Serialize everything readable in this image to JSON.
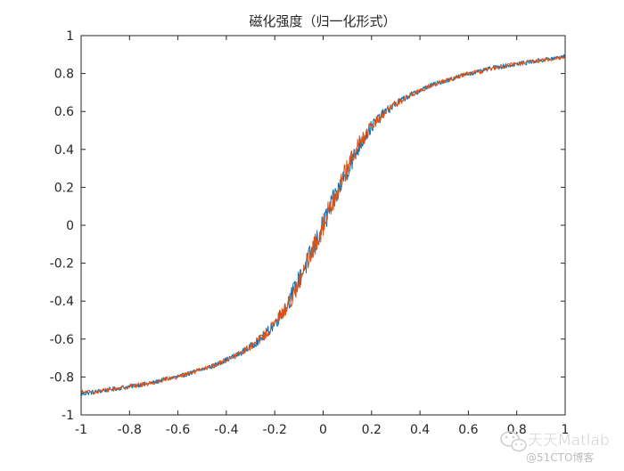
{
  "chart_data": {
    "type": "line",
    "title": "磁化强度（归一化形式）",
    "xlabel": "",
    "ylabel": "",
    "xlim": [
      -1,
      1
    ],
    "ylim": [
      -1,
      1
    ],
    "xticks": [
      -1,
      -0.8,
      -0.6,
      -0.4,
      -0.2,
      0,
      0.2,
      0.4,
      0.6,
      0.8,
      1
    ],
    "xtick_labels": [
      "-1",
      "-0.8",
      "-0.6",
      "-0.4",
      "-0.2",
      "0",
      "0.2",
      "0.4",
      "0.6",
      "0.8",
      "1"
    ],
    "yticks": [
      -1,
      -0.8,
      -0.6,
      -0.4,
      -0.2,
      0,
      0.2,
      0.4,
      0.6,
      0.8,
      1
    ],
    "ytick_labels": [
      "-1",
      "-0.8",
      "-0.6",
      "-0.4",
      "-0.2",
      "0",
      "0.2",
      "0.4",
      "0.6",
      "0.8",
      "1"
    ],
    "grid": false,
    "box": true,
    "legend": "none",
    "series": [
      {
        "color": "#0072BD",
        "x": [
          -1.0,
          -0.95,
          -0.9,
          -0.85,
          -0.8,
          -0.75,
          -0.7,
          -0.65,
          -0.6,
          -0.55,
          -0.5,
          -0.45,
          -0.4,
          -0.35,
          -0.3,
          -0.25,
          -0.2,
          -0.15,
          -0.1,
          -0.05,
          0.0,
          0.05,
          0.1,
          0.15,
          0.2,
          0.25,
          0.3,
          0.35,
          0.4,
          0.45,
          0.5,
          0.55,
          0.6,
          0.65,
          0.7,
          0.75,
          0.8,
          0.85,
          0.9,
          0.95,
          1.0
        ],
        "y": [
          -0.89,
          -0.88,
          -0.87,
          -0.86,
          -0.85,
          -0.84,
          -0.83,
          -0.81,
          -0.8,
          -0.78,
          -0.76,
          -0.74,
          -0.71,
          -0.68,
          -0.64,
          -0.59,
          -0.52,
          -0.42,
          -0.29,
          -0.15,
          0.0,
          0.15,
          0.29,
          0.42,
          0.52,
          0.59,
          0.64,
          0.68,
          0.71,
          0.74,
          0.76,
          0.78,
          0.8,
          0.81,
          0.83,
          0.84,
          0.85,
          0.86,
          0.87,
          0.88,
          0.89
        ]
      },
      {
        "color": "#D95319",
        "x": [
          -1.0,
          -0.95,
          -0.9,
          -0.85,
          -0.8,
          -0.75,
          -0.7,
          -0.65,
          -0.6,
          -0.55,
          -0.5,
          -0.45,
          -0.4,
          -0.35,
          -0.3,
          -0.25,
          -0.2,
          -0.15,
          -0.1,
          -0.05,
          0.0,
          0.05,
          0.1,
          0.15,
          0.2,
          0.25,
          0.3,
          0.35,
          0.4,
          0.45,
          0.5,
          0.55,
          0.6,
          0.65,
          0.7,
          0.75,
          0.8,
          0.85,
          0.9,
          0.95,
          1.0
        ],
        "y": [
          -0.88,
          -0.88,
          -0.87,
          -0.86,
          -0.85,
          -0.84,
          -0.83,
          -0.81,
          -0.8,
          -0.78,
          -0.76,
          -0.74,
          -0.71,
          -0.68,
          -0.64,
          -0.59,
          -0.52,
          -0.43,
          -0.3,
          -0.16,
          0.0,
          0.16,
          0.3,
          0.43,
          0.52,
          0.59,
          0.64,
          0.68,
          0.71,
          0.74,
          0.76,
          0.78,
          0.8,
          0.81,
          0.83,
          0.84,
          0.85,
          0.86,
          0.87,
          0.88,
          0.89
        ]
      }
    ]
  },
  "watermark": {
    "main": "天天Matlab",
    "sub": "@51CTO博客",
    "icon": "wechat-icon"
  }
}
